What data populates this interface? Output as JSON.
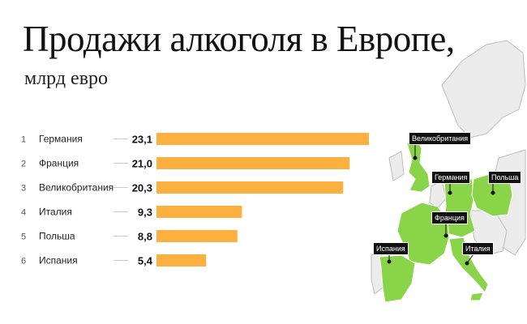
{
  "title": "Продажи алкоголя в Европе,",
  "subtitle": "млрд евро",
  "colors": {
    "bar": "#fbb040",
    "country_fill": "#8ad44a",
    "map_land": "#ececec",
    "map_border": "#bdbdbd"
  },
  "chart_data": {
    "type": "bar",
    "orientation": "horizontal",
    "ranks": [
      "1",
      "2",
      "3",
      "4",
      "5",
      "6"
    ],
    "categories": [
      "Германия",
      "Франция",
      "Великобритания",
      "Италия",
      "Польша",
      "Испания"
    ],
    "values": [
      23.1,
      21.0,
      20.3,
      9.3,
      8.8,
      5.4
    ],
    "value_labels": [
      "23,1",
      "21,0",
      "20,3",
      "9,3",
      "8,8",
      "5,4"
    ],
    "xlim": [
      0,
      23.1
    ],
    "title": "Продажи алкоголя в Европе,",
    "subtitle": "млрд евро"
  },
  "map": {
    "labels": [
      "Великобритания",
      "Германия",
      "Польша",
      "Франция",
      "Испания",
      "Италия"
    ]
  }
}
